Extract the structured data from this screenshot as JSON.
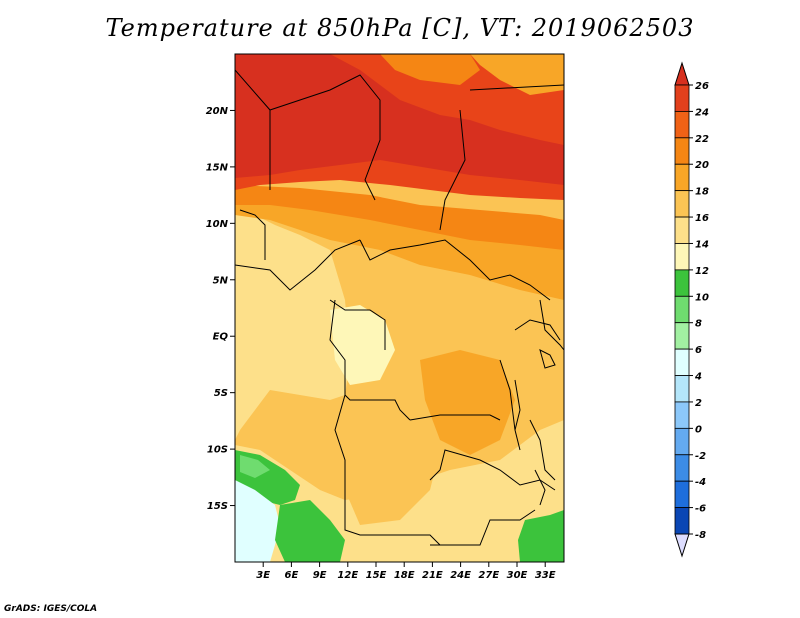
{
  "title": "Temperature at 850hPa [C], VT: 2019062503",
  "credit": "GrADS: IGES/COLA",
  "map": {
    "lon_range": [
      0,
      35
    ],
    "lat_range": [
      -20,
      25
    ],
    "lat_ticks": [
      {
        "value": 20,
        "label": "20N"
      },
      {
        "value": 15,
        "label": "15N"
      },
      {
        "value": 10,
        "label": "10N"
      },
      {
        "value": 5,
        "label": "5N"
      },
      {
        "value": 0,
        "label": "EQ"
      },
      {
        "value": -5,
        "label": "5S"
      },
      {
        "value": -10,
        "label": "10S"
      },
      {
        "value": -15,
        "label": "15S"
      }
    ],
    "lon_ticks": [
      {
        "value": 3,
        "label": "3E"
      },
      {
        "value": 6,
        "label": "6E"
      },
      {
        "value": 9,
        "label": "9E"
      },
      {
        "value": 12,
        "label": "12E"
      },
      {
        "value": 15,
        "label": "15E"
      },
      {
        "value": 18,
        "label": "18E"
      },
      {
        "value": 21,
        "label": "21E"
      },
      {
        "value": 24,
        "label": "24E"
      },
      {
        "value": 27,
        "label": "27E"
      },
      {
        "value": 30,
        "label": "30E"
      },
      {
        "value": 33,
        "label": "33E"
      }
    ]
  },
  "colorbar": {
    "labels": [
      "26",
      "24",
      "22",
      "20",
      "18",
      "16",
      "14",
      "12",
      "10",
      "8",
      "6",
      "4",
      "2",
      "0",
      "-2",
      "-4",
      "-6",
      "-8"
    ],
    "top_color": "#d7301f",
    "bottom_color": "#ddddff",
    "colors": [
      "#e2401c",
      "#f06216",
      "#f58614",
      "#f8a627",
      "#fbc454",
      "#fde08a",
      "#fef7b8",
      "#3cc33c",
      "#6fdc6f",
      "#a2f0a2",
      "#e0ffff",
      "#b4e6fa",
      "#8cc8fa",
      "#64aaf0",
      "#3c8ce6",
      "#1e6edc",
      "#0a46b4",
      "#00127a"
    ]
  },
  "field_colors": {
    "t26": "#d7301f",
    "t24": "#e84419",
    "t22": "#f58614",
    "t20": "#f8a627",
    "t18": "#fbc454",
    "t16": "#fde08a",
    "t14": "#fef7b8",
    "t12": "#3cc33c",
    "t10": "#6fdc6f",
    "t8": "#e0ffff"
  }
}
